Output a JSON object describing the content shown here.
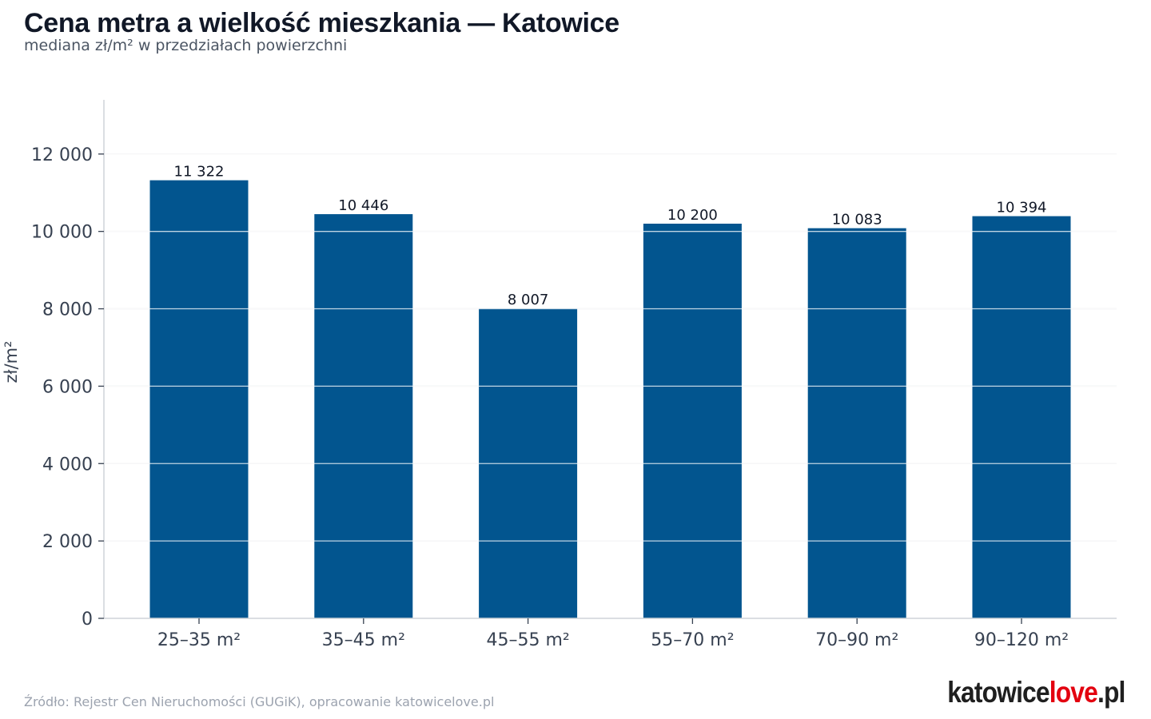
{
  "header": {
    "title": "Cena metra a wielkość mieszkania — Katowice",
    "subtitle": "mediana zł/m² w przedziałach powierzchni"
  },
  "footer": {
    "source": "Źródło: Rejestr Cen Nieruchomości (GUGiK), opracowanie katowicelove.pl",
    "brand_part1": "katowice",
    "brand_part2": "love",
    "brand_part3": ".pl"
  },
  "colors": {
    "bar": "#02558f",
    "grid": "#e5e7eb",
    "axis": "#cfd3d8",
    "brand_accent": "#e3000f"
  },
  "chart_data": {
    "type": "bar",
    "title": "Cena metra a wielkość mieszkania — Katowice",
    "subtitle": "mediana zł/m² w przedziałach powierzchni",
    "xlabel": "",
    "ylabel": "zł/m²",
    "categories": [
      "25–35 m²",
      "35–45 m²",
      "45–55 m²",
      "55–70 m²",
      "70–90 m²",
      "90–120 m²"
    ],
    "values": [
      11322,
      10446,
      8007,
      10200,
      10083,
      10394
    ],
    "value_labels": [
      "11 322",
      "10 446",
      "8 007",
      "10 200",
      "10 083",
      "10 394"
    ],
    "yticks": [
      0,
      2000,
      4000,
      6000,
      8000,
      10000,
      12000
    ],
    "ytick_labels": [
      "0",
      "2 000",
      "4 000",
      "6 000",
      "8 000",
      "10 000",
      "12 000"
    ],
    "ylim": [
      0,
      13400
    ],
    "grid": true,
    "legend": "none"
  }
}
